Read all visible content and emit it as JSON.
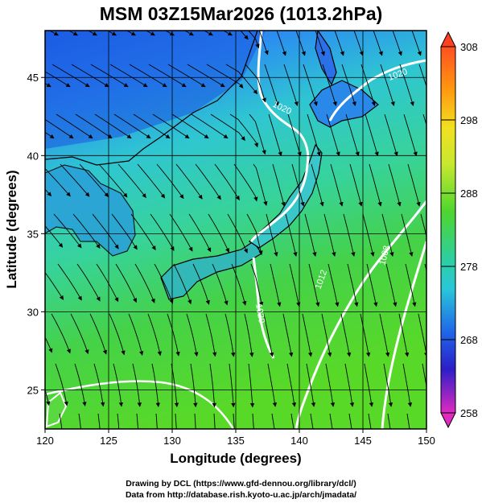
{
  "title": "MSM 03Z15Mar2026 (1013.2hPa)",
  "map": {
    "lon_range": [
      120,
      150
    ],
    "lat_range": [
      22.5,
      48
    ],
    "x_ticks": [
      "120",
      "125",
      "130",
      "135",
      "140",
      "145",
      "150"
    ],
    "y_ticks": [
      "25",
      "30",
      "35",
      "40",
      "45"
    ],
    "xlabel": "Longitude (degrees)",
    "ylabel": "Latitude  (degrees)",
    "contour_labels": [
      "1020",
      "1020",
      "1020",
      "1012",
      "1008"
    ]
  },
  "colorbar": {
    "labels": [
      "308",
      "298",
      "288",
      "278",
      "268",
      "258"
    ],
    "min": 258,
    "max": 308
  },
  "credits": {
    "line1": "Drawing by DCL (https://www.gfd-dennou.org/library/dcl/)",
    "line2": "Data from http://database.rish.kyoto-u.ac.jp/arch/jmadata/"
  },
  "colors": {
    "north_blue": "#1c62e8",
    "mid_cyan": "#2ec7ce",
    "south_green": "#48d42a",
    "contour": "#ffffff",
    "coast": "#000000"
  }
}
